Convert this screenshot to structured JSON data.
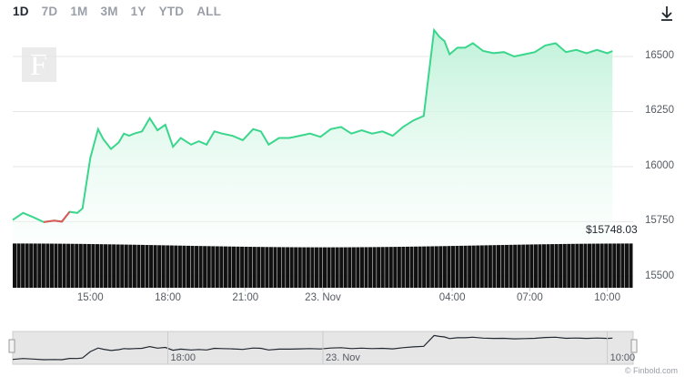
{
  "range_tabs": [
    "1D",
    "7D",
    "1M",
    "3M",
    "1Y",
    "YTD",
    "ALL"
  ],
  "active_tab": "1D",
  "watermark": "F",
  "credits": "© Finbold.com",
  "last_price_label": "$15748.03",
  "colors": {
    "line": "#3ad68c",
    "fill_top": "#bff2d9",
    "drop_segment": "#e0575a",
    "volume": "#111111",
    "text": "#555b63",
    "grid": "#e6e6e6"
  },
  "icons": {
    "download": "download-icon"
  },
  "chart_data": {
    "type": "line",
    "x_ticks": [
      "15:00",
      "18:00",
      "21:00",
      "23. Nov",
      "04:00",
      "07:00",
      "10:00"
    ],
    "y_ticks": [
      16500,
      16250,
      16000,
      15750,
      15500
    ],
    "ylim": [
      15450,
      16620
    ],
    "x_range_hours": [
      0,
      24
    ],
    "series": [
      {
        "x": [
          0.0,
          0.4,
          0.8,
          1.2,
          1.6,
          1.9,
          2.2,
          2.5,
          2.7,
          3.0,
          3.3,
          3.5,
          3.8,
          4.1,
          4.3,
          4.5,
          4.7,
          5.0,
          5.3,
          5.6,
          5.9,
          6.2,
          6.5,
          6.9,
          7.2,
          7.5,
          7.8,
          8.1,
          8.5,
          8.9,
          9.3,
          9.6,
          9.9,
          10.3,
          10.7,
          11.1,
          11.5,
          11.9,
          12.3,
          12.7,
          13.1,
          13.5,
          13.9,
          14.3,
          14.7,
          15.1,
          15.5,
          15.9,
          16.3,
          16.5,
          16.7,
          16.9,
          17.2,
          17.5,
          17.8,
          18.2,
          18.6,
          19.0,
          19.4,
          19.8,
          20.2,
          20.6,
          21.0,
          21.4,
          21.8,
          22.2,
          22.6,
          23.0,
          23.2
        ],
        "y": [
          15758,
          15790,
          15770,
          15748,
          15755,
          15750,
          15795,
          15790,
          15810,
          16040,
          16170,
          16125,
          16080,
          16110,
          16150,
          16140,
          16150,
          16160,
          16220,
          16165,
          16190,
          16090,
          16130,
          16100,
          16115,
          16100,
          16160,
          16150,
          16140,
          16120,
          16170,
          16160,
          16100,
          16130,
          16130,
          16140,
          16150,
          16135,
          16170,
          16180,
          16150,
          16165,
          16150,
          16160,
          16140,
          16180,
          16210,
          16230,
          16620,
          16590,
          16570,
          16510,
          16540,
          16540,
          16560,
          16525,
          16515,
          16520,
          16500,
          16510,
          16520,
          16550,
          16560,
          16520,
          16530,
          16515,
          16530,
          16515,
          16525
        ]
      }
    ],
    "volume": {
      "count": 150,
      "level_min": 0.86,
      "level_max": 1.0
    },
    "navigator": {
      "ticks": [
        "18:00",
        "23. Nov",
        "10:00"
      ]
    },
    "legend": "none",
    "grid": true
  }
}
